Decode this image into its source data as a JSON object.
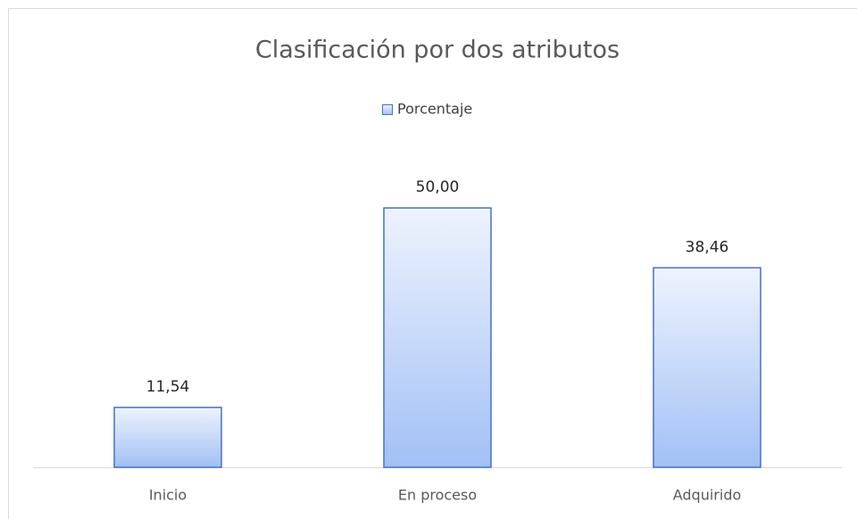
{
  "chart_data": {
    "type": "bar",
    "title": "Clasificación por dos atributos",
    "categories": [
      "Inicio",
      "En proceso",
      "Adquirido"
    ],
    "series": [
      {
        "name": "Porcentaje",
        "color": "#4472c4",
        "values": [
          11.54,
          50.0,
          38.46
        ],
        "value_labels": [
          "11,54",
          "50,00",
          "38,46"
        ]
      }
    ],
    "ylim": [
      0,
      60
    ],
    "legend": "top"
  }
}
